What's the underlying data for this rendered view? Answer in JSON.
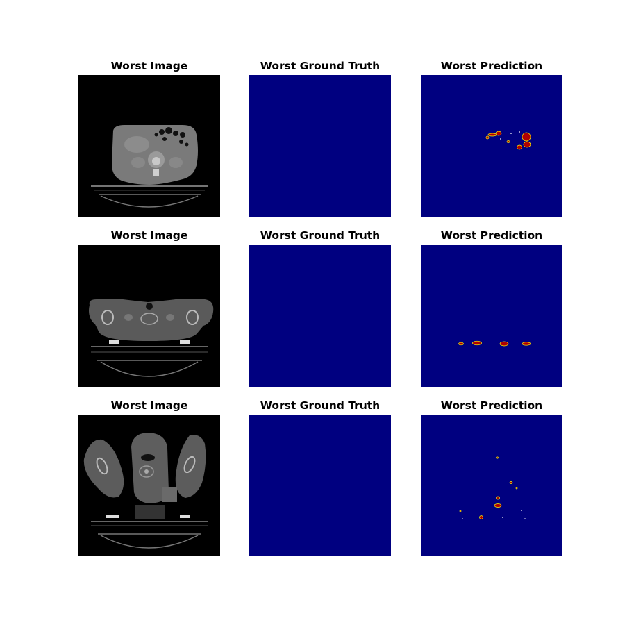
{
  "panels": {
    "image_title": "Worst Image",
    "ground_truth_title": "Worst Ground Truth",
    "prediction_title": "Worst Prediction"
  },
  "colors": {
    "background": "#ffffff",
    "ct_background": "#000000",
    "mask_background": "#000080",
    "prediction_foreground": "#b00000",
    "prediction_edge": "#ffff00"
  },
  "rows": [
    {
      "image": "ct-abdomen-slice"
    },
    {
      "image": "ct-shoulder-slice"
    },
    {
      "image": "ct-neck-arms-slice"
    }
  ]
}
